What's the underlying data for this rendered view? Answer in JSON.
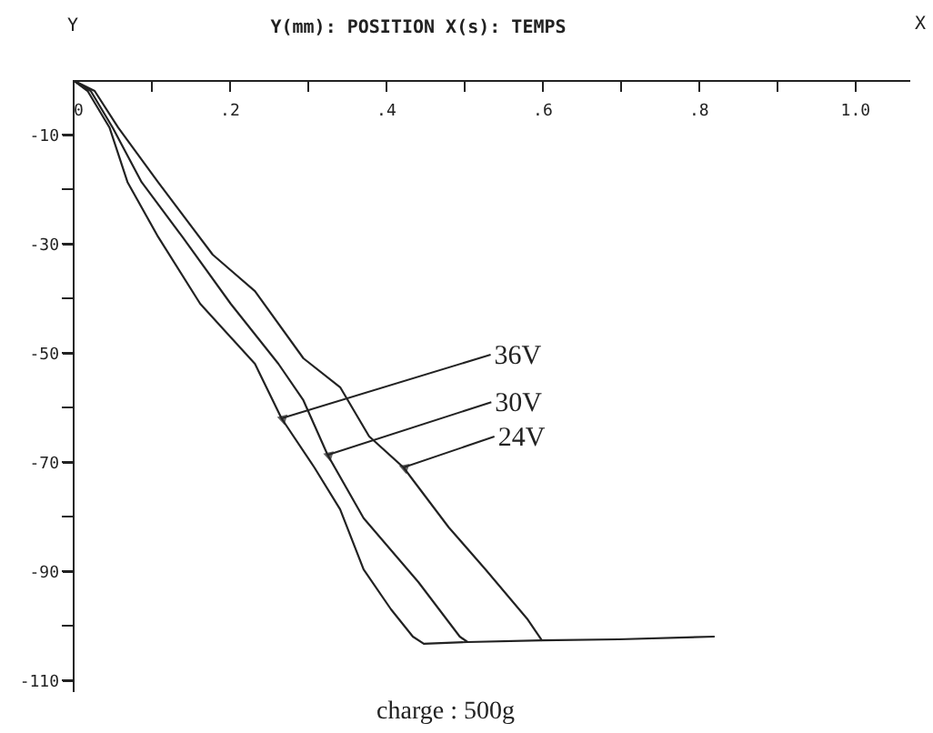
{
  "chart_data": {
    "type": "line",
    "title": "Y(mm): POSITION    X(s): TEMPS",
    "xlabel": "X",
    "ylabel": "Y",
    "annotations": [
      "charge : 500g"
    ],
    "xlim": [
      0,
      1.07
    ],
    "ylim": [
      -112,
      0
    ],
    "xticks": [
      {
        "value": 0,
        "label": "0"
      },
      {
        "value": 0.1,
        "label": null
      },
      {
        "value": 0.2,
        "label": ".2"
      },
      {
        "value": 0.3,
        "label": null
      },
      {
        "value": 0.4,
        "label": ".4"
      },
      {
        "value": 0.5,
        "label": null
      },
      {
        "value": 0.6,
        "label": ".6"
      },
      {
        "value": 0.7,
        "label": null
      },
      {
        "value": 0.8,
        "label": ".8"
      },
      {
        "value": 0.9,
        "label": null
      },
      {
        "value": 1.0,
        "label": "1.0"
      }
    ],
    "yticks": [
      {
        "value": -10,
        "label": "-10"
      },
      {
        "value": -20,
        "label": null
      },
      {
        "value": -30,
        "label": "-30"
      },
      {
        "value": -40,
        "label": null
      },
      {
        "value": -50,
        "label": "-50"
      },
      {
        "value": -60,
        "label": null
      },
      {
        "value": -70,
        "label": "-70"
      },
      {
        "value": -80,
        "label": null
      },
      {
        "value": -90,
        "label": "-90"
      },
      {
        "value": -100,
        "label": null
      },
      {
        "value": -110,
        "label": "-110"
      }
    ],
    "series": [
      {
        "name": "36V",
        "color": "#222222",
        "x": [
          0,
          0.019,
          0.047,
          0.07,
          0.109,
          0.163,
          0.233,
          0.267,
          0.309,
          0.342,
          0.372,
          0.407,
          0.435,
          0.449,
          0.505
        ],
        "values": [
          0,
          -2,
          -8.7,
          -18.7,
          -28.7,
          -41,
          -52,
          -62,
          -71,
          -78.7,
          -89.7,
          -97,
          -102,
          -103.3,
          -103
        ]
      },
      {
        "name": "30V",
        "color": "#222222",
        "x": [
          0,
          0.023,
          0.051,
          0.088,
          0.14,
          0.202,
          0.263,
          0.295,
          0.326,
          0.372,
          0.442,
          0.495,
          0.505,
          0.6
        ],
        "values": [
          0,
          -2,
          -8.7,
          -18.7,
          -28.7,
          -41,
          -52,
          -58.7,
          -68.7,
          -80.3,
          -92,
          -102,
          -103,
          -102.7
        ]
      },
      {
        "name": "24V",
        "color": "#222222",
        "x": [
          0,
          0.028,
          0.058,
          0.109,
          0.179,
          0.233,
          0.295,
          0.342,
          0.379,
          0.423,
          0.481,
          0.528,
          0.581,
          0.6,
          0.698,
          0.821
        ],
        "values": [
          0,
          -2,
          -8.7,
          -18.7,
          -32,
          -38.7,
          -51,
          -56.3,
          -65.3,
          -71,
          -82,
          -89.7,
          -98.7,
          -102.7,
          -102.5,
          -102
        ]
      }
    ]
  }
}
